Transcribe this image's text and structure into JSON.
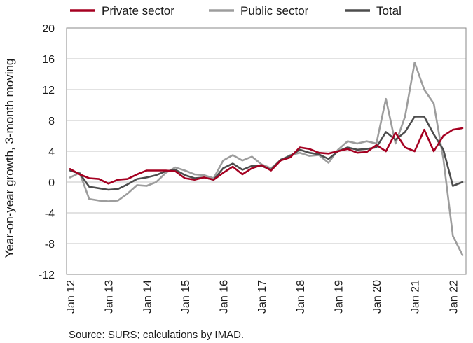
{
  "chart_data": {
    "type": "line",
    "title": "",
    "ylabel": "Year-on-year growth, 3-month moving",
    "xlabel": "",
    "ylim": [
      -12,
      20
    ],
    "yticks": [
      -12,
      -8,
      -4,
      0,
      4,
      8,
      12,
      16,
      20
    ],
    "y_tick_labels": [
      "-12",
      "-8",
      "-4",
      "0",
      "4",
      "8",
      "12",
      "16",
      "20"
    ],
    "x_tick_labels": [
      "Jan 12",
      "Jan 13",
      "Jan 14",
      "Jan 15",
      "Jan 16",
      "Jan 17",
      "Jan 18",
      "Jan 19",
      "Jan 20",
      "Jan 21",
      "Jan 22"
    ],
    "x_start": "2012-01",
    "x_end": "2022-04",
    "grid": true,
    "legend_placement": "top",
    "series": [
      {
        "name": "Private sector",
        "color": "#A50021",
        "points": [
          [
            "2012-01",
            1.7
          ],
          [
            "2012-04",
            1.0
          ],
          [
            "2012-07",
            0.5
          ],
          [
            "2012-10",
            0.4
          ],
          [
            "2013-01",
            -0.2
          ],
          [
            "2013-04",
            0.3
          ],
          [
            "2013-07",
            0.4
          ],
          [
            "2013-10",
            1.0
          ],
          [
            "2014-01",
            1.5
          ],
          [
            "2014-04",
            1.5
          ],
          [
            "2014-07",
            1.5
          ],
          [
            "2014-10",
            1.4
          ],
          [
            "2015-01",
            0.5
          ],
          [
            "2015-04",
            0.3
          ],
          [
            "2015-07",
            0.6
          ],
          [
            "2015-10",
            0.3
          ],
          [
            "2016-01",
            1.2
          ],
          [
            "2016-04",
            2.0
          ],
          [
            "2016-07",
            1.0
          ],
          [
            "2016-10",
            1.8
          ],
          [
            "2017-01",
            2.2
          ],
          [
            "2017-04",
            1.5
          ],
          [
            "2017-07",
            2.8
          ],
          [
            "2017-10",
            3.2
          ],
          [
            "2018-01",
            4.5
          ],
          [
            "2018-04",
            4.3
          ],
          [
            "2018-07",
            3.8
          ],
          [
            "2018-10",
            3.7
          ],
          [
            "2019-01",
            4.0
          ],
          [
            "2019-04",
            4.3
          ],
          [
            "2019-07",
            3.8
          ],
          [
            "2019-10",
            3.9
          ],
          [
            "2020-01",
            4.8
          ],
          [
            "2020-04",
            4.0
          ],
          [
            "2020-07",
            6.4
          ],
          [
            "2020-10",
            4.5
          ],
          [
            "2021-01",
            4.0
          ],
          [
            "2021-04",
            6.8
          ],
          [
            "2021-07",
            4.0
          ],
          [
            "2021-10",
            6.0
          ],
          [
            "2022-01",
            6.8
          ],
          [
            "2022-04",
            7.0
          ]
        ]
      },
      {
        "name": "Public sector",
        "color": "#9D9D9D",
        "points": [
          [
            "2012-01",
            0.6
          ],
          [
            "2012-04",
            1.2
          ],
          [
            "2012-07",
            -2.2
          ],
          [
            "2012-10",
            -2.4
          ],
          [
            "2013-01",
            -2.5
          ],
          [
            "2013-04",
            -2.4
          ],
          [
            "2013-07",
            -1.5
          ],
          [
            "2013-10",
            -0.4
          ],
          [
            "2014-01",
            -0.5
          ],
          [
            "2014-04",
            0.0
          ],
          [
            "2014-07",
            1.2
          ],
          [
            "2014-10",
            1.9
          ],
          [
            "2015-01",
            1.5
          ],
          [
            "2015-04",
            1.0
          ],
          [
            "2015-07",
            0.9
          ],
          [
            "2015-10",
            0.5
          ],
          [
            "2016-01",
            2.8
          ],
          [
            "2016-04",
            3.5
          ],
          [
            "2016-07",
            2.8
          ],
          [
            "2016-10",
            3.3
          ],
          [
            "2017-01",
            2.3
          ],
          [
            "2017-04",
            1.8
          ],
          [
            "2017-07",
            2.8
          ],
          [
            "2017-10",
            3.5
          ],
          [
            "2018-01",
            3.8
          ],
          [
            "2018-04",
            3.4
          ],
          [
            "2018-07",
            3.5
          ],
          [
            "2018-10",
            2.5
          ],
          [
            "2019-01",
            4.2
          ],
          [
            "2019-04",
            5.3
          ],
          [
            "2019-07",
            5.0
          ],
          [
            "2019-10",
            5.3
          ],
          [
            "2020-01",
            5.0
          ],
          [
            "2020-04",
            10.8
          ],
          [
            "2020-07",
            5.0
          ],
          [
            "2020-10",
            8.5
          ],
          [
            "2021-01",
            15.5
          ],
          [
            "2021-04",
            12.0
          ],
          [
            "2021-07",
            10.2
          ],
          [
            "2021-10",
            3.0
          ],
          [
            "2022-01",
            -7.0
          ],
          [
            "2022-04",
            -9.5
          ]
        ]
      },
      {
        "name": "Total",
        "color": "#4D4D4D",
        "points": [
          [
            "2012-01",
            1.5
          ],
          [
            "2012-04",
            1.1
          ],
          [
            "2012-07",
            -0.6
          ],
          [
            "2012-10",
            -0.8
          ],
          [
            "2013-01",
            -1.0
          ],
          [
            "2013-04",
            -0.9
          ],
          [
            "2013-07",
            -0.3
          ],
          [
            "2013-10",
            0.4
          ],
          [
            "2014-01",
            0.6
          ],
          [
            "2014-04",
            0.9
          ],
          [
            "2014-07",
            1.4
          ],
          [
            "2014-10",
            1.6
          ],
          [
            "2015-01",
            0.9
          ],
          [
            "2015-04",
            0.5
          ],
          [
            "2015-07",
            0.6
          ],
          [
            "2015-10",
            0.3
          ],
          [
            "2016-01",
            1.8
          ],
          [
            "2016-04",
            2.4
          ],
          [
            "2016-07",
            1.6
          ],
          [
            "2016-10",
            2.1
          ],
          [
            "2017-01",
            2.1
          ],
          [
            "2017-04",
            1.6
          ],
          [
            "2017-07",
            2.9
          ],
          [
            "2017-10",
            3.4
          ],
          [
            "2018-01",
            4.2
          ],
          [
            "2018-04",
            3.8
          ],
          [
            "2018-07",
            3.6
          ],
          [
            "2018-10",
            3.0
          ],
          [
            "2019-01",
            4.0
          ],
          [
            "2019-04",
            4.5
          ],
          [
            "2019-07",
            4.2
          ],
          [
            "2019-10",
            4.3
          ],
          [
            "2020-01",
            4.5
          ],
          [
            "2020-04",
            6.5
          ],
          [
            "2020-07",
            5.5
          ],
          [
            "2020-10",
            6.5
          ],
          [
            "2021-01",
            8.5
          ],
          [
            "2021-04",
            8.5
          ],
          [
            "2021-07",
            6.2
          ],
          [
            "2021-10",
            4.2
          ],
          [
            "2022-01",
            -0.5
          ],
          [
            "2022-04",
            0.0
          ]
        ]
      }
    ]
  },
  "source_note": "Source: SURS; calculations by IMAD."
}
